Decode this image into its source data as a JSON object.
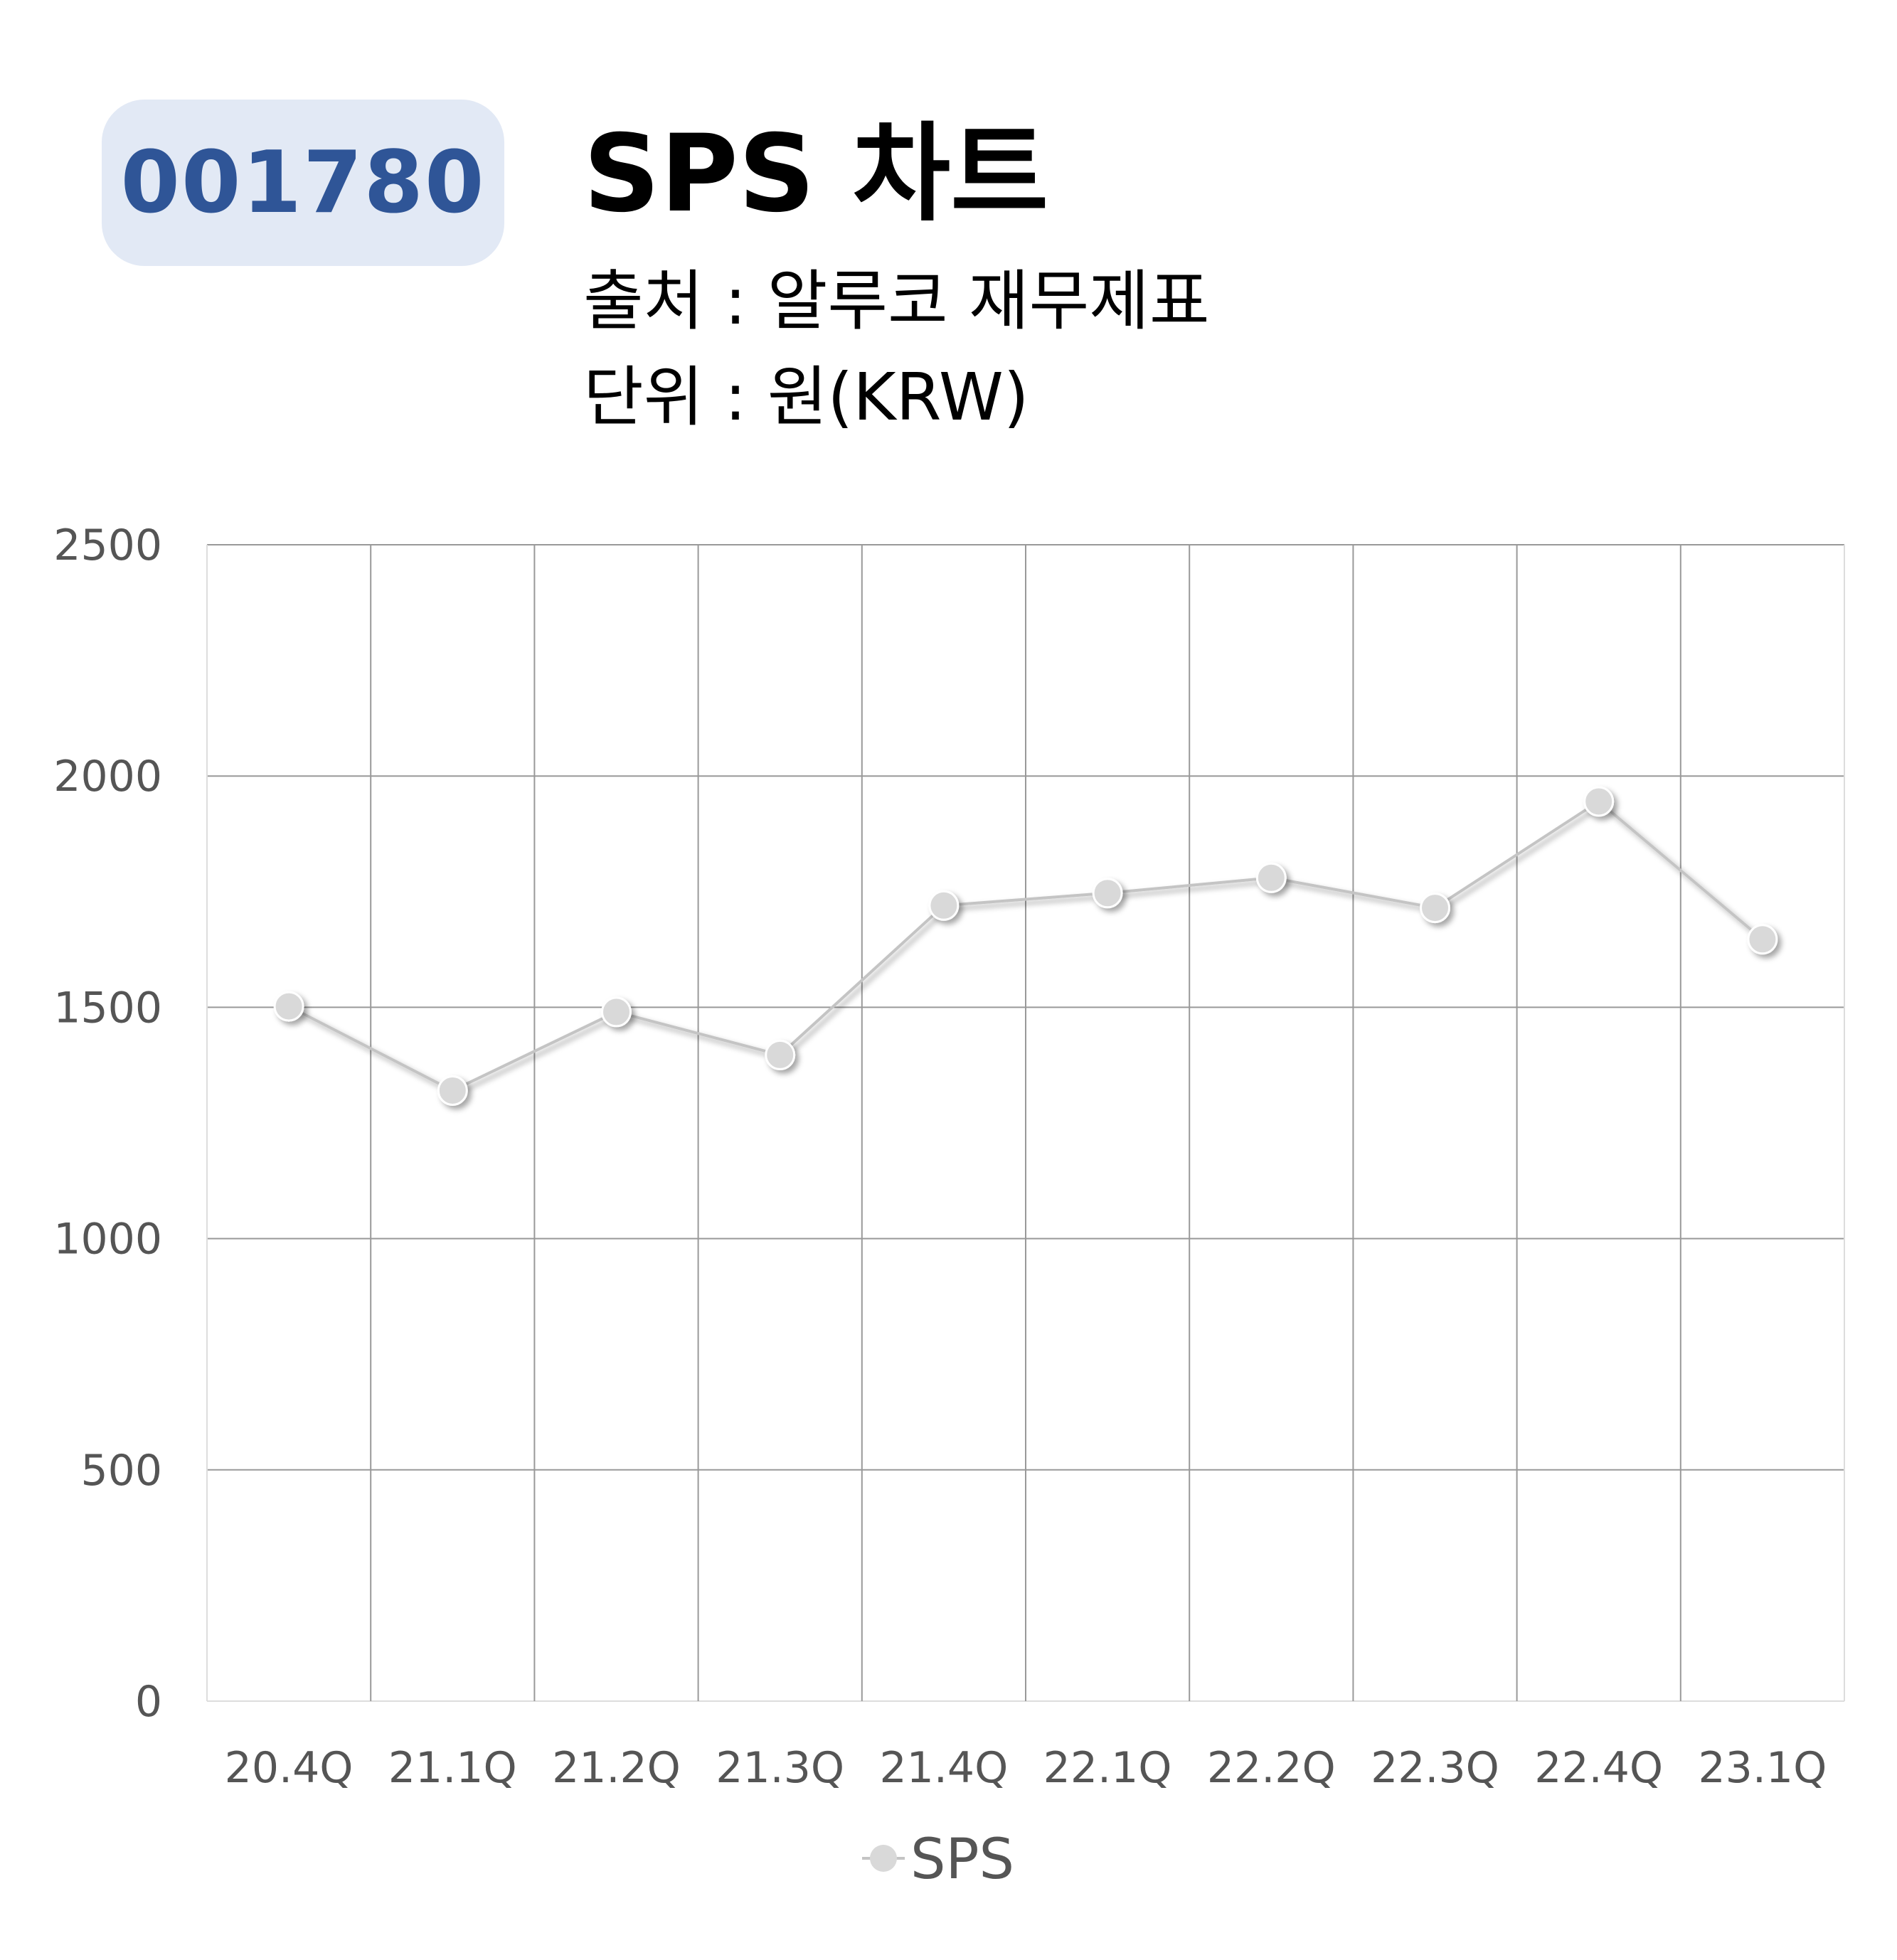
{
  "header": {
    "ticker": "001780",
    "title": "SPS 차트",
    "source": "출처 : 알루코 재무제표",
    "unit": "단위 : 원(KRW)"
  },
  "chart_data": {
    "type": "line",
    "categories": [
      "20.4Q",
      "21.1Q",
      "21.2Q",
      "21.3Q",
      "21.4Q",
      "22.1Q",
      "22.2Q",
      "22.3Q",
      "22.4Q",
      "23.1Q"
    ],
    "series": [
      {
        "name": "SPS",
        "values": [
          1502,
          1320,
          1490,
          1397,
          1720,
          1747,
          1780,
          1715,
          1945,
          1647
        ],
        "color": "#d9d9d9"
      }
    ],
    "ylim": [
      0,
      2500
    ],
    "yticks": [
      0,
      500,
      1000,
      1500,
      2000,
      2500
    ],
    "grid": true,
    "legend": "bottom-center",
    "colors": {
      "grid": "#999999",
      "line": "#c4c4c4",
      "marker": "#d9d9d9",
      "text": "#555555"
    }
  }
}
